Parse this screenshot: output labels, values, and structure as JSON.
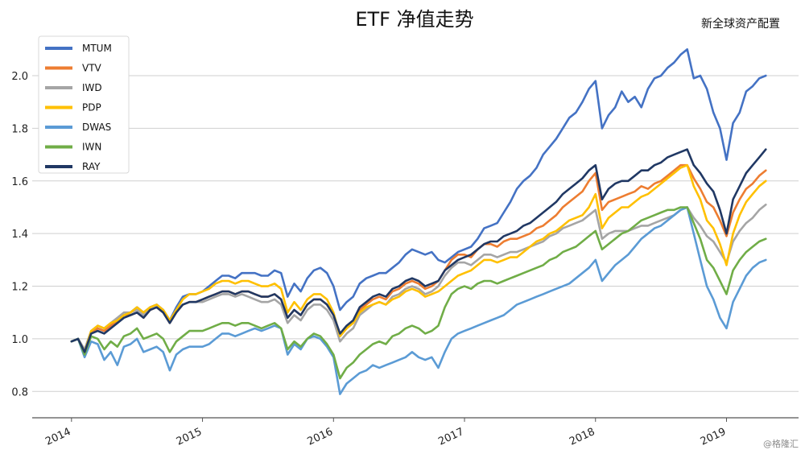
{
  "chart_data": {
    "type": "line",
    "title": "ETF 净值走势",
    "subtitle": "新全球资产配置",
    "watermark": "@格隆汇",
    "xlabel": "",
    "ylabel": "",
    "x_ticks": [
      "2014",
      "2015",
      "2016",
      "2017",
      "2018",
      "2019"
    ],
    "y_ticks": [
      "0.8",
      "1.0",
      "1.2",
      "1.4",
      "1.6",
      "1.8",
      "2.0"
    ],
    "xlim": [
      2013.7,
      2019.55
    ],
    "ylim": [
      0.7,
      2.15
    ],
    "grid": "horizontal",
    "legend_position": "top-left",
    "x": [
      2014.0,
      2014.05,
      2014.1,
      2014.15,
      2014.2,
      2014.25,
      2014.3,
      2014.35,
      2014.4,
      2014.45,
      2014.5,
      2014.55,
      2014.6,
      2014.65,
      2014.7,
      2014.75,
      2014.8,
      2014.85,
      2014.9,
      2014.95,
      2015.0,
      2015.05,
      2015.1,
      2015.15,
      2015.2,
      2015.25,
      2015.3,
      2015.35,
      2015.4,
      2015.45,
      2015.5,
      2015.55,
      2015.6,
      2015.65,
      2015.7,
      2015.75,
      2015.8,
      2015.85,
      2015.9,
      2015.95,
      2016.0,
      2016.05,
      2016.1,
      2016.15,
      2016.2,
      2016.25,
      2016.3,
      2016.35,
      2016.4,
      2016.45,
      2016.5,
      2016.55,
      2016.6,
      2016.65,
      2016.7,
      2016.75,
      2016.8,
      2016.85,
      2016.9,
      2016.95,
      2017.0,
      2017.05,
      2017.1,
      2017.15,
      2017.2,
      2017.25,
      2017.3,
      2017.35,
      2017.4,
      2017.45,
      2017.5,
      2017.55,
      2017.6,
      2017.65,
      2017.7,
      2017.75,
      2017.8,
      2017.85,
      2017.9,
      2017.95,
      2018.0,
      2018.05,
      2018.1,
      2018.15,
      2018.2,
      2018.25,
      2018.3,
      2018.35,
      2018.4,
      2018.45,
      2018.5,
      2018.55,
      2018.6,
      2018.65,
      2018.7,
      2018.75,
      2018.8,
      2018.85,
      2018.9,
      2018.95,
      2019.0,
      2019.05,
      2019.1,
      2019.15,
      2019.2,
      2019.25,
      2019.3
    ],
    "series": [
      {
        "name": "MTUM",
        "color": "#4472C4",
        "values": [
          0.99,
          1.0,
          0.95,
          1.02,
          1.04,
          1.03,
          1.05,
          1.07,
          1.09,
          1.1,
          1.12,
          1.1,
          1.12,
          1.13,
          1.11,
          1.07,
          1.12,
          1.16,
          1.17,
          1.17,
          1.18,
          1.2,
          1.22,
          1.24,
          1.24,
          1.23,
          1.25,
          1.25,
          1.25,
          1.24,
          1.24,
          1.26,
          1.25,
          1.16,
          1.21,
          1.18,
          1.23,
          1.26,
          1.27,
          1.25,
          1.2,
          1.11,
          1.14,
          1.16,
          1.21,
          1.23,
          1.24,
          1.25,
          1.25,
          1.27,
          1.29,
          1.32,
          1.34,
          1.33,
          1.32,
          1.33,
          1.3,
          1.29,
          1.31,
          1.33,
          1.34,
          1.35,
          1.38,
          1.42,
          1.43,
          1.44,
          1.48,
          1.52,
          1.57,
          1.6,
          1.62,
          1.65,
          1.7,
          1.73,
          1.76,
          1.8,
          1.84,
          1.86,
          1.9,
          1.95,
          1.98,
          1.8,
          1.85,
          1.88,
          1.94,
          1.9,
          1.92,
          1.88,
          1.95,
          1.99,
          2.0,
          2.03,
          2.05,
          2.08,
          2.1,
          1.99,
          2.0,
          1.95,
          1.86,
          1.8,
          1.68,
          1.82,
          1.86,
          1.94,
          1.96,
          1.99,
          2.0
        ]
      },
      {
        "name": "VTV",
        "color": "#ED7D31",
        "values": [
          0.99,
          1.0,
          0.95,
          1.02,
          1.04,
          1.03,
          1.05,
          1.07,
          1.09,
          1.09,
          1.1,
          1.08,
          1.11,
          1.12,
          1.1,
          1.06,
          1.1,
          1.13,
          1.14,
          1.14,
          1.15,
          1.16,
          1.17,
          1.18,
          1.18,
          1.17,
          1.18,
          1.18,
          1.17,
          1.16,
          1.16,
          1.17,
          1.15,
          1.08,
          1.11,
          1.09,
          1.13,
          1.15,
          1.15,
          1.13,
          1.09,
          1.01,
          1.04,
          1.06,
          1.11,
          1.13,
          1.15,
          1.16,
          1.15,
          1.18,
          1.19,
          1.21,
          1.22,
          1.21,
          1.19,
          1.2,
          1.22,
          1.26,
          1.3,
          1.32,
          1.32,
          1.31,
          1.34,
          1.36,
          1.36,
          1.35,
          1.37,
          1.38,
          1.38,
          1.39,
          1.4,
          1.42,
          1.43,
          1.45,
          1.47,
          1.5,
          1.52,
          1.54,
          1.56,
          1.6,
          1.63,
          1.49,
          1.52,
          1.53,
          1.54,
          1.55,
          1.56,
          1.58,
          1.57,
          1.59,
          1.6,
          1.62,
          1.64,
          1.66,
          1.66,
          1.61,
          1.57,
          1.52,
          1.5,
          1.45,
          1.39,
          1.48,
          1.53,
          1.57,
          1.59,
          1.62,
          1.64
        ]
      },
      {
        "name": "IWD",
        "color": "#A5A5A5",
        "values": [
          0.99,
          1.0,
          0.96,
          1.03,
          1.05,
          1.04,
          1.06,
          1.08,
          1.1,
          1.1,
          1.11,
          1.09,
          1.12,
          1.13,
          1.11,
          1.07,
          1.11,
          1.13,
          1.14,
          1.14,
          1.14,
          1.15,
          1.16,
          1.17,
          1.17,
          1.16,
          1.17,
          1.16,
          1.15,
          1.14,
          1.14,
          1.15,
          1.13,
          1.06,
          1.09,
          1.07,
          1.11,
          1.13,
          1.13,
          1.11,
          1.07,
          0.99,
          1.02,
          1.04,
          1.09,
          1.11,
          1.13,
          1.14,
          1.13,
          1.16,
          1.17,
          1.19,
          1.2,
          1.19,
          1.17,
          1.18,
          1.2,
          1.24,
          1.27,
          1.29,
          1.29,
          1.28,
          1.3,
          1.32,
          1.32,
          1.31,
          1.32,
          1.33,
          1.33,
          1.34,
          1.35,
          1.36,
          1.37,
          1.39,
          1.4,
          1.42,
          1.43,
          1.44,
          1.45,
          1.47,
          1.49,
          1.38,
          1.4,
          1.41,
          1.41,
          1.41,
          1.42,
          1.43,
          1.43,
          1.44,
          1.45,
          1.46,
          1.47,
          1.49,
          1.5,
          1.46,
          1.43,
          1.39,
          1.37,
          1.33,
          1.29,
          1.37,
          1.41,
          1.44,
          1.46,
          1.49,
          1.51
        ]
      },
      {
        "name": "PDP",
        "color": "#FFC000",
        "values": [
          0.99,
          1.0,
          0.95,
          1.03,
          1.05,
          1.04,
          1.06,
          1.07,
          1.09,
          1.1,
          1.12,
          1.1,
          1.12,
          1.13,
          1.11,
          1.07,
          1.11,
          1.15,
          1.17,
          1.17,
          1.18,
          1.19,
          1.21,
          1.22,
          1.22,
          1.21,
          1.22,
          1.22,
          1.21,
          1.2,
          1.2,
          1.21,
          1.19,
          1.1,
          1.14,
          1.11,
          1.15,
          1.17,
          1.17,
          1.15,
          1.1,
          1.01,
          1.04,
          1.06,
          1.1,
          1.12,
          1.13,
          1.14,
          1.13,
          1.15,
          1.16,
          1.18,
          1.19,
          1.18,
          1.16,
          1.17,
          1.18,
          1.2,
          1.22,
          1.24,
          1.25,
          1.26,
          1.28,
          1.3,
          1.3,
          1.29,
          1.3,
          1.31,
          1.31,
          1.33,
          1.35,
          1.37,
          1.38,
          1.4,
          1.41,
          1.43,
          1.45,
          1.46,
          1.47,
          1.5,
          1.55,
          1.42,
          1.46,
          1.48,
          1.5,
          1.5,
          1.52,
          1.54,
          1.55,
          1.57,
          1.59,
          1.61,
          1.63,
          1.65,
          1.66,
          1.58,
          1.53,
          1.45,
          1.42,
          1.36,
          1.28,
          1.4,
          1.47,
          1.52,
          1.55,
          1.58,
          1.6
        ]
      },
      {
        "name": "DWAS",
        "color": "#5B9BD5",
        "values": [
          0.99,
          1.0,
          0.93,
          0.99,
          0.98,
          0.92,
          0.95,
          0.9,
          0.97,
          0.98,
          1.0,
          0.95,
          0.96,
          0.97,
          0.95,
          0.88,
          0.94,
          0.96,
          0.97,
          0.97,
          0.97,
          0.98,
          1.0,
          1.02,
          1.02,
          1.01,
          1.02,
          1.03,
          1.04,
          1.03,
          1.04,
          1.05,
          1.04,
          0.94,
          0.98,
          0.96,
          1.0,
          1.01,
          1.0,
          0.97,
          0.93,
          0.79,
          0.83,
          0.85,
          0.87,
          0.88,
          0.9,
          0.89,
          0.9,
          0.91,
          0.92,
          0.93,
          0.95,
          0.93,
          0.92,
          0.93,
          0.89,
          0.95,
          1.0,
          1.02,
          1.03,
          1.04,
          1.05,
          1.06,
          1.07,
          1.08,
          1.09,
          1.11,
          1.13,
          1.14,
          1.15,
          1.16,
          1.17,
          1.18,
          1.19,
          1.2,
          1.21,
          1.23,
          1.25,
          1.27,
          1.3,
          1.22,
          1.25,
          1.28,
          1.3,
          1.32,
          1.35,
          1.38,
          1.4,
          1.42,
          1.43,
          1.45,
          1.47,
          1.49,
          1.5,
          1.4,
          1.3,
          1.2,
          1.15,
          1.08,
          1.04,
          1.14,
          1.19,
          1.24,
          1.27,
          1.29,
          1.3
        ]
      },
      {
        "name": "IWN",
        "color": "#70AD47",
        "values": [
          0.99,
          1.0,
          0.94,
          1.01,
          1.0,
          0.96,
          0.99,
          0.97,
          1.01,
          1.02,
          1.04,
          1.0,
          1.01,
          1.02,
          1.0,
          0.95,
          0.99,
          1.01,
          1.03,
          1.03,
          1.03,
          1.04,
          1.05,
          1.06,
          1.06,
          1.05,
          1.06,
          1.06,
          1.05,
          1.04,
          1.05,
          1.06,
          1.04,
          0.96,
          0.99,
          0.97,
          1.0,
          1.02,
          1.01,
          0.98,
          0.94,
          0.85,
          0.89,
          0.91,
          0.94,
          0.96,
          0.98,
          0.99,
          0.98,
          1.01,
          1.02,
          1.04,
          1.05,
          1.04,
          1.02,
          1.03,
          1.05,
          1.12,
          1.17,
          1.19,
          1.2,
          1.19,
          1.21,
          1.22,
          1.22,
          1.21,
          1.22,
          1.23,
          1.24,
          1.25,
          1.26,
          1.27,
          1.28,
          1.3,
          1.31,
          1.33,
          1.34,
          1.35,
          1.37,
          1.39,
          1.41,
          1.34,
          1.36,
          1.38,
          1.4,
          1.41,
          1.43,
          1.45,
          1.46,
          1.47,
          1.48,
          1.49,
          1.49,
          1.5,
          1.5,
          1.44,
          1.38,
          1.3,
          1.27,
          1.22,
          1.17,
          1.26,
          1.3,
          1.33,
          1.35,
          1.37,
          1.38
        ]
      },
      {
        "name": "RAY",
        "color": "#203864",
        "values": [
          0.99,
          1.0,
          0.95,
          1.02,
          1.03,
          1.02,
          1.04,
          1.06,
          1.08,
          1.09,
          1.1,
          1.08,
          1.11,
          1.12,
          1.1,
          1.06,
          1.1,
          1.13,
          1.14,
          1.14,
          1.15,
          1.16,
          1.17,
          1.18,
          1.18,
          1.17,
          1.18,
          1.18,
          1.17,
          1.16,
          1.16,
          1.17,
          1.15,
          1.08,
          1.11,
          1.09,
          1.13,
          1.15,
          1.15,
          1.13,
          1.09,
          1.02,
          1.05,
          1.07,
          1.12,
          1.14,
          1.16,
          1.17,
          1.16,
          1.19,
          1.2,
          1.22,
          1.23,
          1.22,
          1.2,
          1.21,
          1.22,
          1.26,
          1.28,
          1.3,
          1.31,
          1.32,
          1.34,
          1.36,
          1.37,
          1.37,
          1.39,
          1.4,
          1.41,
          1.43,
          1.44,
          1.46,
          1.48,
          1.5,
          1.52,
          1.55,
          1.57,
          1.59,
          1.61,
          1.64,
          1.66,
          1.53,
          1.57,
          1.59,
          1.6,
          1.6,
          1.62,
          1.64,
          1.64,
          1.66,
          1.67,
          1.69,
          1.7,
          1.71,
          1.72,
          1.66,
          1.63,
          1.59,
          1.56,
          1.49,
          1.4,
          1.53,
          1.58,
          1.63,
          1.66,
          1.69,
          1.72
        ]
      }
    ]
  }
}
